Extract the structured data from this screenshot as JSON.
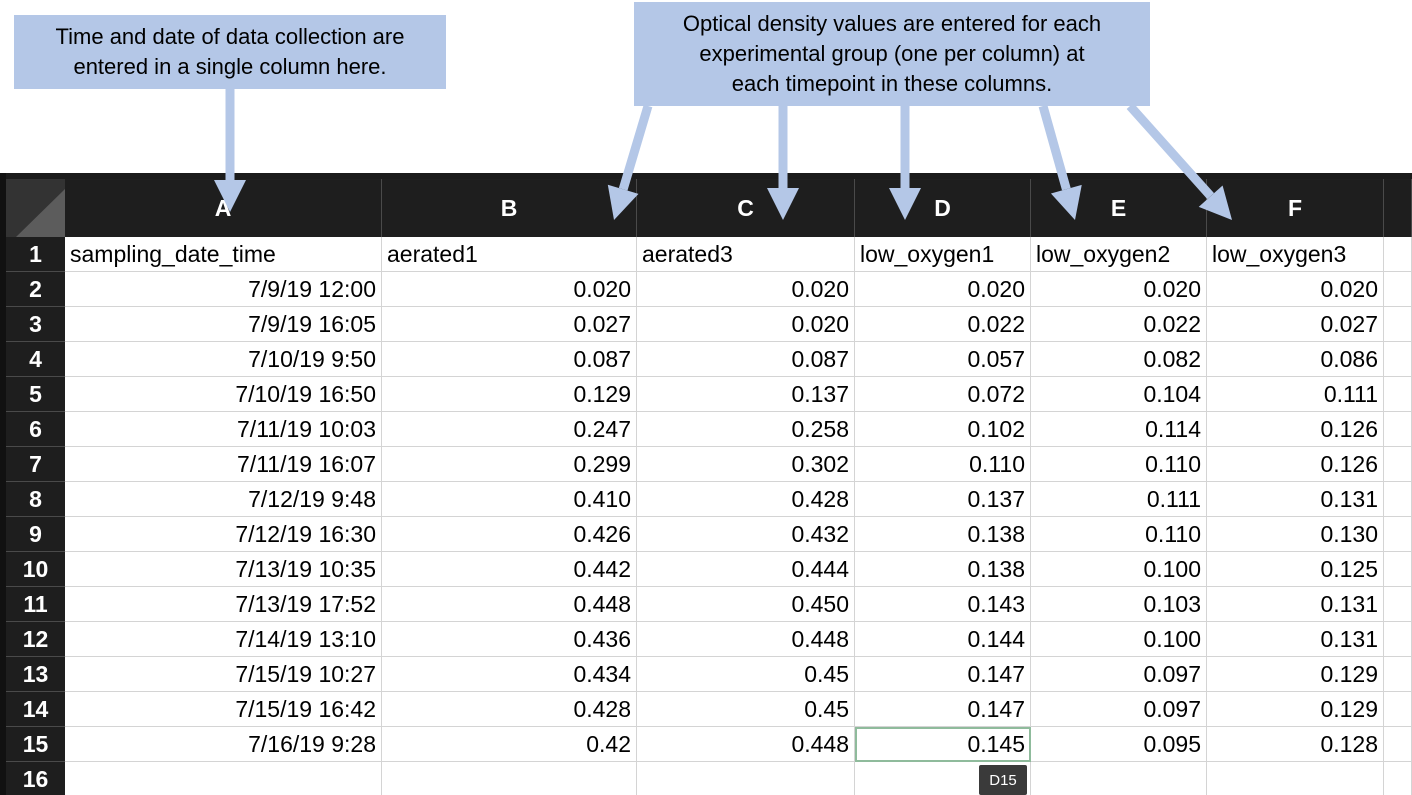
{
  "callouts": {
    "left": [
      "Time and date of data collection are",
      "entered in a single column here."
    ],
    "right": [
      "Optical density values are entered for each",
      "experimental group (one per column) at",
      "each timepoint in these columns."
    ],
    "color": "#b4c7e7"
  },
  "sheet": {
    "columns": [
      "A",
      "B",
      "C",
      "D",
      "E",
      "F"
    ],
    "row_numbers": [
      "1",
      "2",
      "3",
      "4",
      "5",
      "6",
      "7",
      "8",
      "9",
      "10",
      "11",
      "12",
      "13",
      "14",
      "15",
      "16"
    ],
    "headers": [
      "sampling_date_time",
      "aerated1",
      "aerated3",
      "low_oxygen1",
      "low_oxygen2",
      "low_oxygen3"
    ],
    "rows": [
      [
        "7/9/19 12:00",
        "0.020",
        "0.020",
        "0.020",
        "0.020",
        "0.020"
      ],
      [
        "7/9/19 16:05",
        "0.027",
        "0.020",
        "0.022",
        "0.022",
        "0.027"
      ],
      [
        "7/10/19 9:50",
        "0.087",
        "0.087",
        "0.057",
        "0.082",
        "0.086"
      ],
      [
        "7/10/19 16:50",
        "0.129",
        "0.137",
        "0.072",
        "0.104",
        "0.111"
      ],
      [
        "7/11/19 10:03",
        "0.247",
        "0.258",
        "0.102",
        "0.114",
        "0.126"
      ],
      [
        "7/11/19 16:07",
        "0.299",
        "0.302",
        "0.110",
        "0.110",
        "0.126"
      ],
      [
        "7/12/19 9:48",
        "0.410",
        "0.428",
        "0.137",
        "0.111",
        "0.131"
      ],
      [
        "7/12/19 16:30",
        "0.426",
        "0.432",
        "0.138",
        "0.110",
        "0.130"
      ],
      [
        "7/13/19 10:35",
        "0.442",
        "0.444",
        "0.138",
        "0.100",
        "0.125"
      ],
      [
        "7/13/19 17:52",
        "0.448",
        "0.450",
        "0.143",
        "0.103",
        "0.131"
      ],
      [
        "7/14/19 13:10",
        "0.436",
        "0.448",
        "0.144",
        "0.100",
        "0.131"
      ],
      [
        "7/15/19 10:27",
        "0.434",
        "0.45",
        "0.147",
        "0.097",
        "0.129"
      ],
      [
        "7/15/19 16:42",
        "0.428",
        "0.45",
        "0.147",
        "0.097",
        "0.129"
      ],
      [
        "7/16/19 9:28",
        "0.42",
        "0.448",
        "0.145",
        "0.095",
        "0.128"
      ]
    ],
    "selected_cell": "D15",
    "header_bg": "#1e1e1e",
    "selection_color": "#8fbb9c"
  }
}
